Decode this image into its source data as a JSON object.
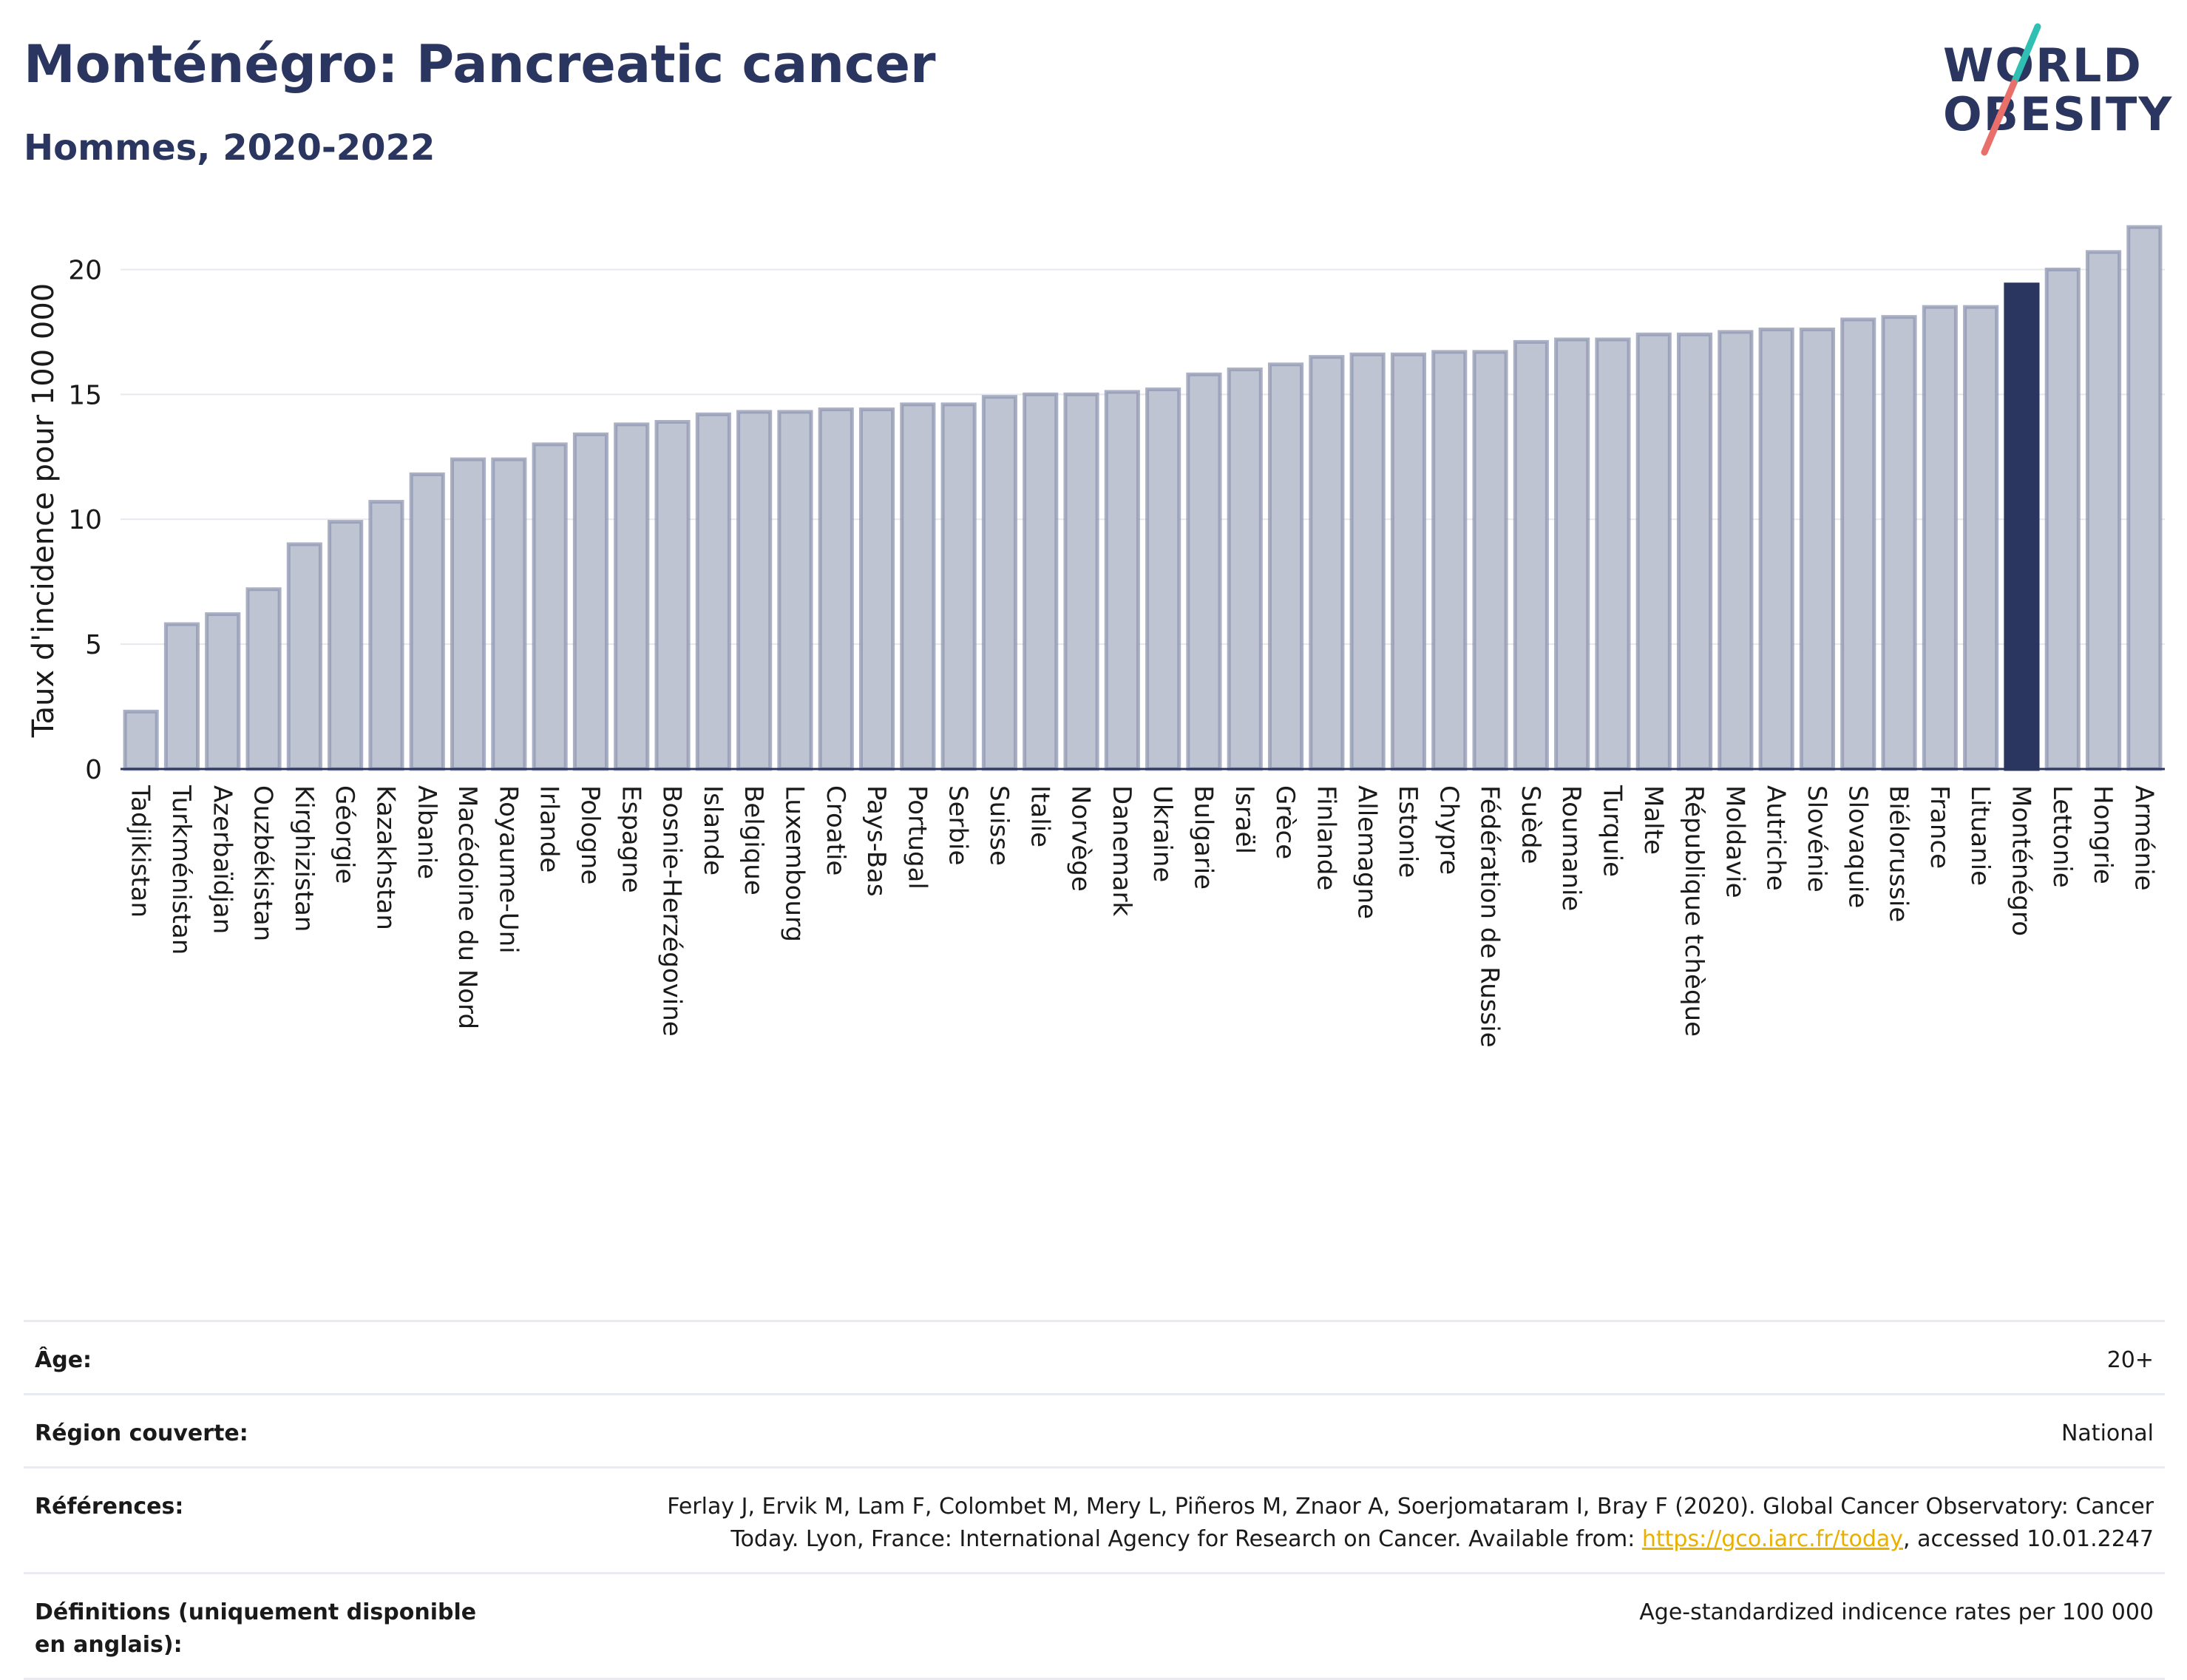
{
  "header": {
    "title": "Monténégro: Pancreatic cancer",
    "subtitle": "Hommes, 2020-2022"
  },
  "logo": {
    "line1": "WORLD",
    "line2": "OBESITY",
    "colors": [
      "#2b3660",
      "#2fbfb3",
      "#e9706a"
    ]
  },
  "chart_data": {
    "type": "bar",
    "ylabel": "Taux d'incidence pour 100 000",
    "ylim": [
      0,
      22.5
    ],
    "yticks": [
      0,
      5,
      10,
      15,
      20
    ],
    "grid": true,
    "highlight": "Monténégro",
    "colors": {
      "bar": "#bfc4d2",
      "bar_edge": "#8f97b0",
      "highlight": "#2b3660"
    },
    "categories": [
      "Tadjikistan",
      "Turkménistan",
      "Azerbaïdjan",
      "Ouzbékistan",
      "Kirghizistan",
      "Géorgie",
      "Kazakhstan",
      "Albanie",
      "Macédoine du Nord",
      "Royaume-Uni",
      "Irlande",
      "Pologne",
      "Espagne",
      "Bosnie-Herzégovine",
      "Islande",
      "Belgique",
      "Luxembourg",
      "Croatie",
      "Pays-Bas",
      "Portugal",
      "Serbie",
      "Suisse",
      "Italie",
      "Norvège",
      "Danemark",
      "Ukraine",
      "Bulgarie",
      "Israël",
      "Grèce",
      "Finlande",
      "Allemagne",
      "Estonie",
      "Chypre",
      "Fédération de Russie",
      "Suède",
      "Roumanie",
      "Turquie",
      "Malte",
      "République tchèque",
      "Moldavie",
      "Autriche",
      "Slovénie",
      "Slovaquie",
      "Biélorussie",
      "France",
      "Lituanie",
      "Monténégro",
      "Lettonie",
      "Hongrie",
      "Arménie"
    ],
    "values": [
      2.3,
      5.8,
      6.2,
      7.2,
      9.0,
      9.9,
      10.7,
      11.8,
      12.4,
      12.4,
      13.0,
      13.4,
      13.8,
      13.9,
      14.2,
      14.3,
      14.3,
      14.4,
      14.4,
      14.6,
      14.6,
      14.9,
      15.0,
      15.0,
      15.1,
      15.2,
      15.8,
      16.0,
      16.2,
      16.5,
      16.6,
      16.6,
      16.7,
      16.7,
      17.1,
      17.2,
      17.2,
      17.4,
      17.4,
      17.5,
      17.6,
      17.6,
      18.0,
      18.1,
      18.5,
      18.5,
      19.4,
      20.0,
      20.7,
      21.7
    ]
  },
  "info": {
    "age_label": "Âge:",
    "age_value": "20+",
    "region_label": "Région couverte:",
    "region_value": "National",
    "refs_label": "Références:",
    "refs_text_1": "Ferlay J, Ervik M, Lam F, Colombet M, Mery L, Piñeros M, Znaor A, Soerjomataram I, Bray F (2020). Global Cancer Observatory: Cancer Today. Lyon, France: International Agency for Research on Cancer. Available from: ",
    "refs_link": "https://gco.iarc.fr/today",
    "refs_text_2": ", accessed 10.01.2247",
    "defs_label": "Définitions (uniquement disponible en anglais):",
    "defs_value": "Age-standardized indicence rates per 100 000"
  }
}
